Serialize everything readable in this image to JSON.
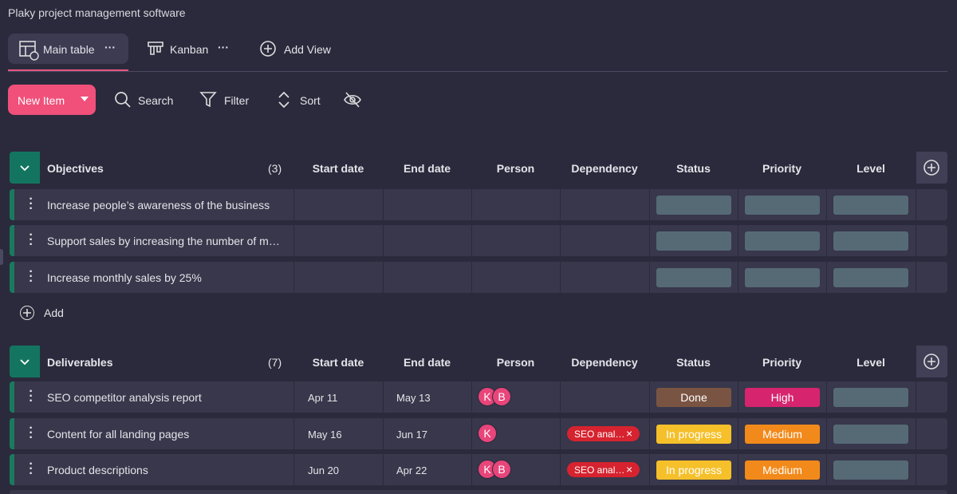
{
  "app_title": "Plaky project management software",
  "views": [
    "Main table",
    "Kanban"
  ],
  "add_view": "Add View",
  "toolbar": {
    "new_item": "New Item",
    "search": "Search",
    "filter": "Filter",
    "sort": "Sort"
  },
  "columns": [
    "Start date",
    "End date",
    "Person",
    "Dependency",
    "Status",
    "Priority",
    "Level"
  ],
  "groups": [
    {
      "name": "Objectives",
      "count": "(3)",
      "add": "Add",
      "items": [
        {
          "name": "Increase people’s awareness of the business"
        },
        {
          "name": "Support sales by increasing the number of m…"
        },
        {
          "name": "Increase monthly sales by 25%"
        }
      ]
    },
    {
      "name": "Deliverables",
      "count": "(7)",
      "items": [
        {
          "name": "SEO competitor analysis report",
          "start_date": "Apr 11",
          "end_date": "May 13",
          "persons": [
            "K",
            "B"
          ],
          "status": "Done",
          "priority": "High"
        },
        {
          "name": "Content for all landing pages",
          "start_date": "May 16",
          "end_date": "Jun 17",
          "persons": [
            "K"
          ],
          "dependency": "SEO anal…",
          "status": "In progress",
          "priority": "Medium"
        },
        {
          "name": "Product descriptions",
          "start_date": "Jun 20",
          "end_date": "Apr 22",
          "persons": [
            "K",
            "B"
          ],
          "dependency": "SEO anal…",
          "status": "In progress",
          "priority": "Medium"
        }
      ]
    }
  ]
}
